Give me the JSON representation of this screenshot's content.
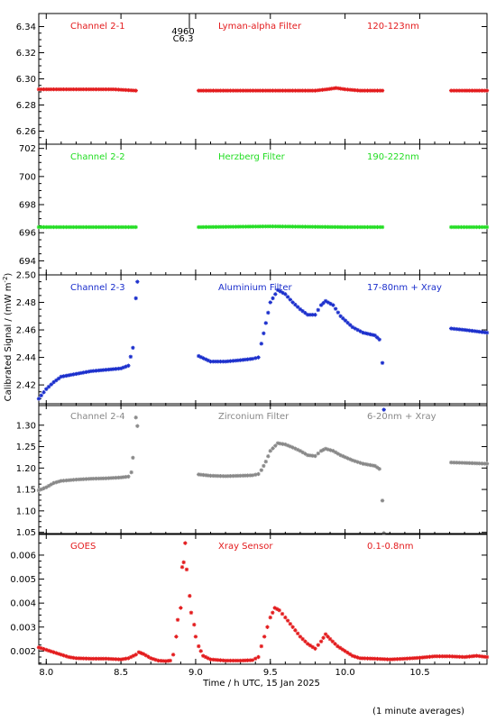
{
  "footer_note": "(1 minute averages)",
  "chart_data": {
    "type": "scatter",
    "xlabel": "Time / h UTC, 15 Jan 2025",
    "ylabel": "Calibrated Signal / (mW m",
    "ylabel_sup": "-2",
    "ylabel_close": ")",
    "xlim": [
      7.95,
      10.95
    ],
    "x_ticks": [
      8.0,
      8.5,
      9.0,
      9.5,
      10.0,
      10.5
    ],
    "x_tick_labels": [
      "8.0",
      "8.5",
      "9.0",
      "9.5",
      "10.0",
      "10.5"
    ],
    "event_marker": {
      "x": 8.94,
      "label_top": "4960",
      "label_bottom": "C6.3"
    },
    "panels": [
      {
        "channel": "Channel 2-1",
        "filter": "Lyman-alpha Filter",
        "band": "120-123nm",
        "color": "#e31a1c",
        "ylim": [
          6.25,
          6.35
        ],
        "y_ticks": [
          6.26,
          6.28,
          6.3,
          6.32,
          6.34
        ],
        "y_tick_labels": [
          "6.26",
          "6.28",
          "6.30",
          "6.32",
          "6.34"
        ],
        "segments": [
          {
            "points": [
              [
                7.95,
                6.292
              ],
              [
                8.1,
                6.292
              ],
              [
                8.3,
                6.292
              ],
              [
                8.45,
                6.292
              ],
              [
                8.6,
                6.291
              ]
            ]
          },
          {
            "points": [
              [
                9.02,
                6.291
              ],
              [
                9.2,
                6.291
              ],
              [
                9.4,
                6.291
              ],
              [
                9.6,
                6.291
              ],
              [
                9.8,
                6.291
              ],
              [
                9.88,
                6.292
              ],
              [
                9.94,
                6.293
              ],
              [
                10.0,
                6.292
              ],
              [
                10.1,
                6.291
              ],
              [
                10.25,
                6.291
              ]
            ]
          },
          {
            "points": [
              [
                10.71,
                6.291
              ],
              [
                10.8,
                6.291
              ],
              [
                10.95,
                6.291
              ]
            ]
          }
        ]
      },
      {
        "channel": "Channel 2-2",
        "filter": "Herzberg Filter",
        "band": "190-222nm",
        "color": "#22dd22",
        "ylim": [
          693,
          702.3
        ],
        "y_ticks": [
          694,
          696,
          698,
          700,
          702
        ],
        "y_tick_labels": [
          "694",
          "696",
          "698",
          "700",
          "702"
        ],
        "segments": [
          {
            "points": [
              [
                7.95,
                696.4
              ],
              [
                8.3,
                696.4
              ],
              [
                8.6,
                696.4
              ]
            ]
          },
          {
            "points": [
              [
                9.02,
                696.4
              ],
              [
                9.5,
                696.45
              ],
              [
                10.0,
                696.4
              ],
              [
                10.25,
                696.4
              ]
            ]
          },
          {
            "points": [
              [
                10.71,
                696.4
              ],
              [
                10.95,
                696.4
              ]
            ]
          }
        ]
      },
      {
        "channel": "Channel 2-3",
        "filter": "Aluminium Filter",
        "band": "17-80nm + Xray",
        "color": "#1a2ecc",
        "ylim": [
          2.405,
          2.5
        ],
        "y_ticks": [
          2.42,
          2.44,
          2.46,
          2.48,
          2.5
        ],
        "y_tick_labels": [
          "2.42",
          "2.44",
          "2.46",
          "2.48",
          "2.50"
        ],
        "segments": [
          {
            "points": [
              [
                7.95,
                2.41
              ],
              [
                8.0,
                2.417
              ],
              [
                8.05,
                2.422
              ],
              [
                8.1,
                2.426
              ],
              [
                8.2,
                2.428
              ],
              [
                8.3,
                2.43
              ],
              [
                8.4,
                2.431
              ],
              [
                8.5,
                2.432
              ],
              [
                8.55,
                2.434
              ],
              [
                8.58,
                2.447
              ]
            ]
          },
          {
            "points": [
              [
                9.02,
                2.441
              ],
              [
                9.1,
                2.437
              ],
              [
                9.2,
                2.437
              ],
              [
                9.3,
                2.438
              ],
              [
                9.38,
                2.439
              ],
              [
                9.42,
                2.44
              ],
              [
                9.44,
                2.45
              ],
              [
                9.47,
                2.465
              ],
              [
                9.5,
                2.48
              ],
              [
                9.55,
                2.489
              ],
              [
                9.6,
                2.486
              ],
              [
                9.65,
                2.48
              ],
              [
                9.7,
                2.475
              ],
              [
                9.75,
                2.471
              ],
              [
                9.8,
                2.471
              ],
              [
                9.84,
                2.478
              ],
              [
                9.87,
                2.481
              ],
              [
                9.92,
                2.478
              ],
              [
                9.97,
                2.47
              ],
              [
                10.05,
                2.462
              ],
              [
                10.12,
                2.458
              ],
              [
                10.2,
                2.456
              ],
              [
                10.23,
                2.453
              ],
              [
                10.25,
                2.436
              ]
            ]
          },
          {
            "points": [
              [
                10.71,
                2.461
              ],
              [
                10.8,
                2.46
              ],
              [
                10.95,
                2.458
              ]
            ]
          }
        ],
        "extra_points": [
          [
            8.6,
            2.483
          ],
          [
            8.61,
            2.495
          ],
          [
            10.26,
            2.402
          ]
        ]
      },
      {
        "channel": "Channel 2-4",
        "filter": "Zirconium Filter",
        "band": "6-20nm + Xray",
        "color": "#888888",
        "ylim": [
          1.045,
          1.35
        ],
        "y_ticks": [
          1.05,
          1.1,
          1.15,
          1.2,
          1.25,
          1.3
        ],
        "y_tick_labels": [
          "1.05",
          "1.10",
          "1.15",
          "1.20",
          "1.25",
          "1.30"
        ],
        "segments": [
          {
            "points": [
              [
                7.95,
                1.148
              ],
              [
                8.0,
                1.155
              ],
              [
                8.05,
                1.165
              ],
              [
                8.1,
                1.17
              ],
              [
                8.2,
                1.173
              ],
              [
                8.3,
                1.175
              ],
              [
                8.4,
                1.176
              ],
              [
                8.5,
                1.178
              ],
              [
                8.55,
                1.18
              ],
              [
                8.57,
                1.19
              ],
              [
                8.58,
                1.224
              ]
            ]
          },
          {
            "points": [
              [
                9.02,
                1.185
              ],
              [
                9.1,
                1.182
              ],
              [
                9.2,
                1.181
              ],
              [
                9.3,
                1.182
              ],
              [
                9.38,
                1.183
              ],
              [
                9.42,
                1.186
              ],
              [
                9.44,
                1.195
              ],
              [
                9.47,
                1.215
              ],
              [
                9.5,
                1.24
              ],
              [
                9.55,
                1.258
              ],
              [
                9.6,
                1.255
              ],
              [
                9.65,
                1.248
              ],
              [
                9.7,
                1.24
              ],
              [
                9.75,
                1.23
              ],
              [
                9.8,
                1.228
              ],
              [
                9.84,
                1.24
              ],
              [
                9.87,
                1.245
              ],
              [
                9.92,
                1.24
              ],
              [
                9.97,
                1.23
              ],
              [
                10.05,
                1.218
              ],
              [
                10.12,
                1.21
              ],
              [
                10.2,
                1.205
              ],
              [
                10.23,
                1.198
              ],
              [
                10.25,
                1.124
              ]
            ]
          },
          {
            "points": [
              [
                10.71,
                1.213
              ],
              [
                10.8,
                1.212
              ],
              [
                10.95,
                1.21
              ]
            ]
          }
        ],
        "extra_points": [
          [
            8.6,
            1.318
          ],
          [
            8.61,
            1.298
          ],
          [
            10.26,
            1.048
          ]
        ]
      },
      {
        "channel": "GOES",
        "filter": "Xray Sensor",
        "band": "0.1-0.8nm",
        "color": "#e31a1c",
        "ylim": [
          0.00145,
          0.0069
        ],
        "y_ticks": [
          0.002,
          0.003,
          0.004,
          0.005,
          0.006
        ],
        "y_tick_labels": [
          "0.002",
          "0.003",
          "0.004",
          "0.005",
          "0.006"
        ],
        "segments": [
          {
            "points": [
              [
                7.95,
                0.00215
              ],
              [
                8.0,
                0.00205
              ],
              [
                8.05,
                0.00195
              ],
              [
                8.1,
                0.00185
              ],
              [
                8.15,
                0.00175
              ],
              [
                8.2,
                0.0017
              ],
              [
                8.3,
                0.00168
              ],
              [
                8.4,
                0.00168
              ],
              [
                8.5,
                0.00165
              ],
              [
                8.55,
                0.0017
              ],
              [
                8.6,
                0.00185
              ],
              [
                8.62,
                0.00195
              ],
              [
                8.65,
                0.00188
              ],
              [
                8.7,
                0.0017
              ],
              [
                8.75,
                0.0016
              ],
              [
                8.8,
                0.00158
              ],
              [
                8.83,
                0.0016
              ],
              [
                8.85,
                0.00185
              ],
              [
                8.87,
                0.0026
              ],
              [
                8.88,
                0.0033
              ],
              [
                8.9,
                0.0038
              ],
              [
                8.91,
                0.0055
              ],
              [
                8.92,
                0.0057
              ],
              [
                8.94,
                0.0054
              ],
              [
                8.96,
                0.0043
              ],
              [
                8.97,
                0.0036
              ],
              [
                8.99,
                0.0031
              ],
              [
                9.0,
                0.0026
              ],
              [
                9.02,
                0.0022
              ],
              [
                9.05,
                0.0018
              ],
              [
                9.1,
                0.00165
              ],
              [
                9.2,
                0.0016
              ],
              [
                9.3,
                0.0016
              ],
              [
                9.38,
                0.00162
              ],
              [
                9.42,
                0.00175
              ],
              [
                9.44,
                0.0022
              ],
              [
                9.46,
                0.0026
              ],
              [
                9.48,
                0.003
              ],
              [
                9.5,
                0.0034
              ],
              [
                9.53,
                0.0038
              ],
              [
                9.56,
                0.0037
              ],
              [
                9.6,
                0.0034
              ],
              [
                9.65,
                0.003
              ],
              [
                9.7,
                0.0026
              ],
              [
                9.75,
                0.0023
              ],
              [
                9.8,
                0.0021
              ],
              [
                9.84,
                0.0024
              ],
              [
                9.87,
                0.0027
              ],
              [
                9.9,
                0.0025
              ],
              [
                9.95,
                0.0022
              ],
              [
                10.0,
                0.002
              ],
              [
                10.05,
                0.0018
              ],
              [
                10.1,
                0.0017
              ],
              [
                10.2,
                0.00168
              ],
              [
                10.3,
                0.00165
              ],
              [
                10.4,
                0.00168
              ],
              [
                10.5,
                0.00172
              ],
              [
                10.6,
                0.00178
              ],
              [
                10.7,
                0.00178
              ],
              [
                10.8,
                0.00175
              ],
              [
                10.88,
                0.0018
              ],
              [
                10.95,
                0.00175
              ]
            ]
          }
        ],
        "extra_points": [
          [
            8.93,
            0.0065
          ]
        ]
      }
    ]
  }
}
